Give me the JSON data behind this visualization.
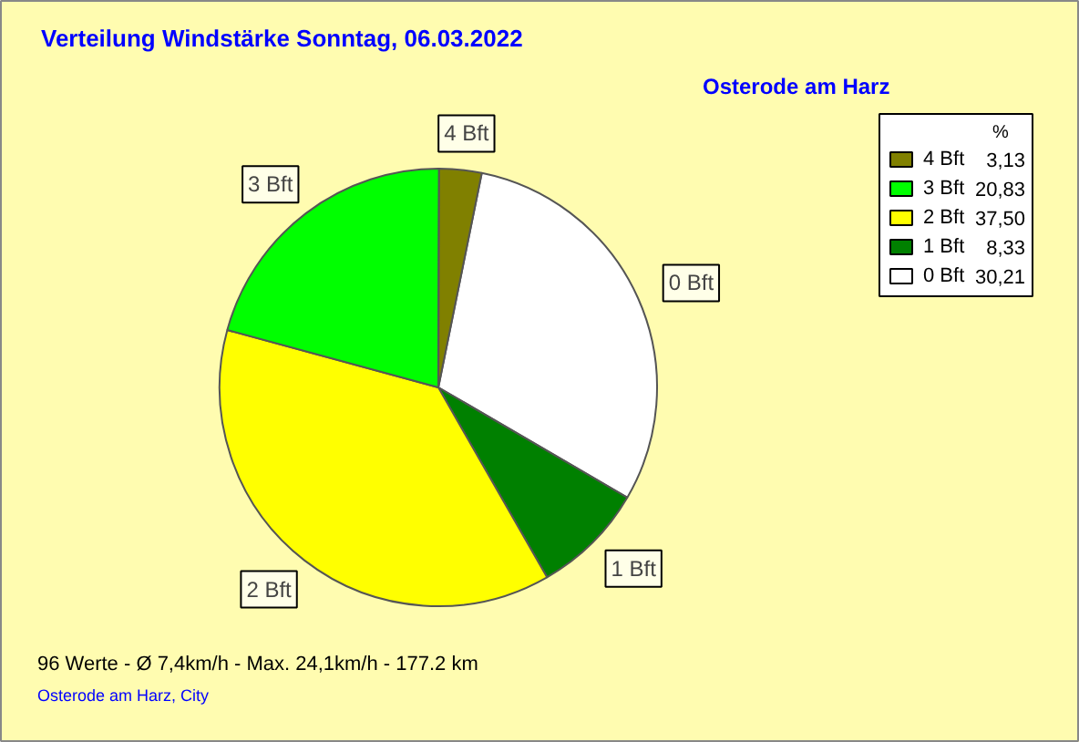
{
  "chart_data": {
    "type": "pie",
    "title": "Verteilung Windstärke  Sonntag, 06.03.2022",
    "subtitle": "Osterode am Harz",
    "legend_title": "%",
    "legend": "top right",
    "categories": [
      "4 Bft",
      "3 Bft",
      "2 Bft",
      "1 Bft",
      "0 Bft"
    ],
    "values": [
      3.13,
      20.83,
      37.5,
      8.33,
      30.21
    ],
    "value_labels": [
      "3,13",
      "20,83",
      "37,50",
      "8,33",
      "30,21"
    ],
    "colors": [
      "#808000",
      "#00ff00",
      "#ffff00",
      "#008000",
      "#ffffff"
    ],
    "annotations": [
      "96 Werte   -   Ø 7,4km/h  -  Max. 24,1km/h   -   177.2 km",
      "Osterode am Harz, City"
    ]
  }
}
